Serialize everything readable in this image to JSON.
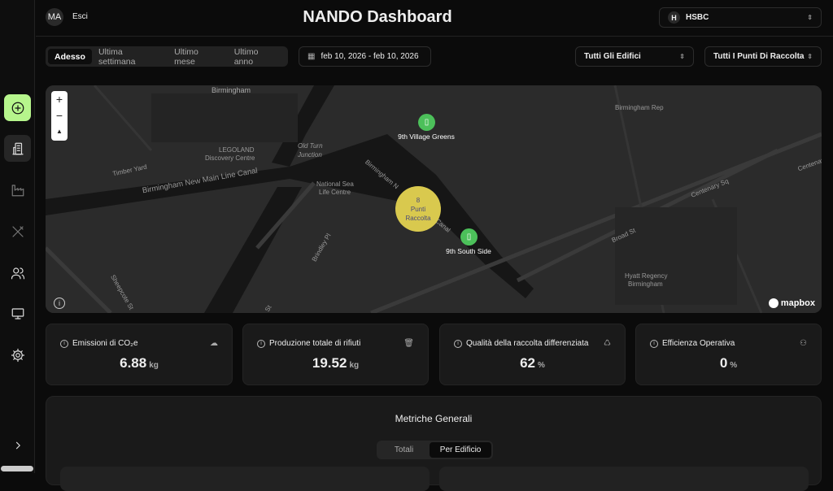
{
  "header": {
    "avatar": "MA",
    "logout": "Esci",
    "title": "NANDO Dashboard",
    "org": {
      "initial": "H",
      "name": "HSBC"
    }
  },
  "sidebar": {
    "items": [
      {
        "icon": "plus-circle-icon"
      },
      {
        "icon": "building-icon"
      },
      {
        "icon": "factory-icon"
      },
      {
        "icon": "utensils-icon"
      },
      {
        "icon": "users-icon"
      },
      {
        "icon": "monitor-icon"
      },
      {
        "icon": "gear-icon"
      }
    ],
    "expand_icon": "chevron-right-icon",
    "accent": "#b6f58c"
  },
  "filters": {
    "tabs": [
      "Adesso",
      "Ultima settimana",
      "Ultimo mese",
      "Ultimo anno"
    ],
    "active_tab": "Adesso",
    "date_range": "feb 10, 2026 - feb 10, 2026",
    "buildings": "Tutti Gli Edifici",
    "points": "Tutti I Punti Di Raccolta"
  },
  "map": {
    "labels": {
      "birmingham": "Birmingham",
      "legoland": "LEGOLAND",
      "legoland2": "Discovery Centre",
      "timber": "Timber Yard",
      "canal": "Birmingham New Main Line Canal",
      "oldturn": "Old Turn",
      "junction": "Junction",
      "sealife": "National Sea",
      "sealife2": "Life Centre",
      "birmn": "Birmingham N",
      "canal2": "Canal",
      "brindley": "Brindley Pl",
      "sheepcote": "Sheepcote St",
      "st": "St",
      "rep": "Birmingham Rep",
      "centenary": "Centenary Sq",
      "centenary2": "Centenar",
      "broad": "Broad St",
      "hyatt": "Hyatt Regency",
      "hyatt2": "Birmingham"
    },
    "markers": [
      {
        "name": "9th Village Greens"
      },
      {
        "name": "9th South Side"
      }
    ],
    "cluster": {
      "count": "8",
      "line1": "Punti",
      "line2": "Raccolta",
      "color": "#d9c94e"
    },
    "marker_color": "#4cc05a",
    "attribution": "mapbox",
    "zoom_in": "+",
    "zoom_out": "−"
  },
  "kpis": [
    {
      "label": "Emissioni di CO₂e",
      "value": "6.88",
      "unit": "kg",
      "icon": "cloud-icon"
    },
    {
      "label": "Produzione totale di rifiuti",
      "value": "19.52",
      "unit": "kg",
      "icon": "trash-icon"
    },
    {
      "label": "Qualità della raccolta differenziata",
      "value": "62",
      "unit": "%",
      "icon": "recycle-icon"
    },
    {
      "label": "Efficienza Operativa",
      "value": "0",
      "unit": "%",
      "icon": "user-cog-icon"
    }
  ],
  "metrics": {
    "title": "Metriche Generali",
    "toggle": [
      "Totali",
      "Per Edificio"
    ],
    "active": "Per Edificio"
  }
}
